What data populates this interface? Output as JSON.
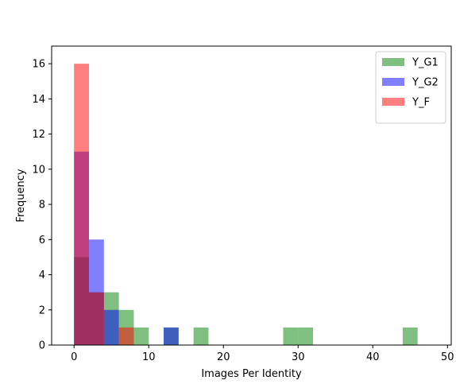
{
  "chart_data": {
    "type": "bar",
    "title": "",
    "xlabel": "Images Per Identity",
    "ylabel": "Frequency",
    "xlim": [
      -3,
      50.5
    ],
    "ylim": [
      0,
      17
    ],
    "x_ticks": [
      0,
      10,
      20,
      30,
      40,
      50
    ],
    "y_ticks": [
      0,
      2,
      4,
      6,
      8,
      10,
      12,
      14,
      16
    ],
    "legend_position": "top-right",
    "grid": false,
    "series": [
      {
        "name": "Y_G1",
        "color": "#008000",
        "opacity": 0.5,
        "bins": [
          {
            "x0": 0,
            "x1": 2,
            "count": 5
          },
          {
            "x0": 2,
            "x1": 4,
            "count": 3
          },
          {
            "x0": 4,
            "x1": 6,
            "count": 3
          },
          {
            "x0": 6,
            "x1": 8,
            "count": 2
          },
          {
            "x0": 8,
            "x1": 10,
            "count": 1
          },
          {
            "x0": 12,
            "x1": 14,
            "count": 1
          },
          {
            "x0": 16,
            "x1": 18,
            "count": 1
          },
          {
            "x0": 28,
            "x1": 30,
            "count": 1
          },
          {
            "x0": 30,
            "x1": 32,
            "count": 1
          },
          {
            "x0": 44,
            "x1": 46,
            "count": 1
          }
        ]
      },
      {
        "name": "Y_G2",
        "color": "#0000ff",
        "opacity": 0.5,
        "bins": [
          {
            "x0": 0,
            "x1": 2,
            "count": 11
          },
          {
            "x0": 2,
            "x1": 4,
            "count": 6
          },
          {
            "x0": 4,
            "x1": 6,
            "count": 2
          },
          {
            "x0": 12,
            "x1": 14,
            "count": 1
          }
        ]
      },
      {
        "name": "Y_F",
        "color": "#ff0000",
        "opacity": 0.5,
        "bins": [
          {
            "x0": 0,
            "x1": 2,
            "count": 16
          },
          {
            "x0": 2,
            "x1": 4,
            "count": 3
          },
          {
            "x0": 6,
            "x1": 8,
            "count": 1
          }
        ]
      }
    ]
  }
}
